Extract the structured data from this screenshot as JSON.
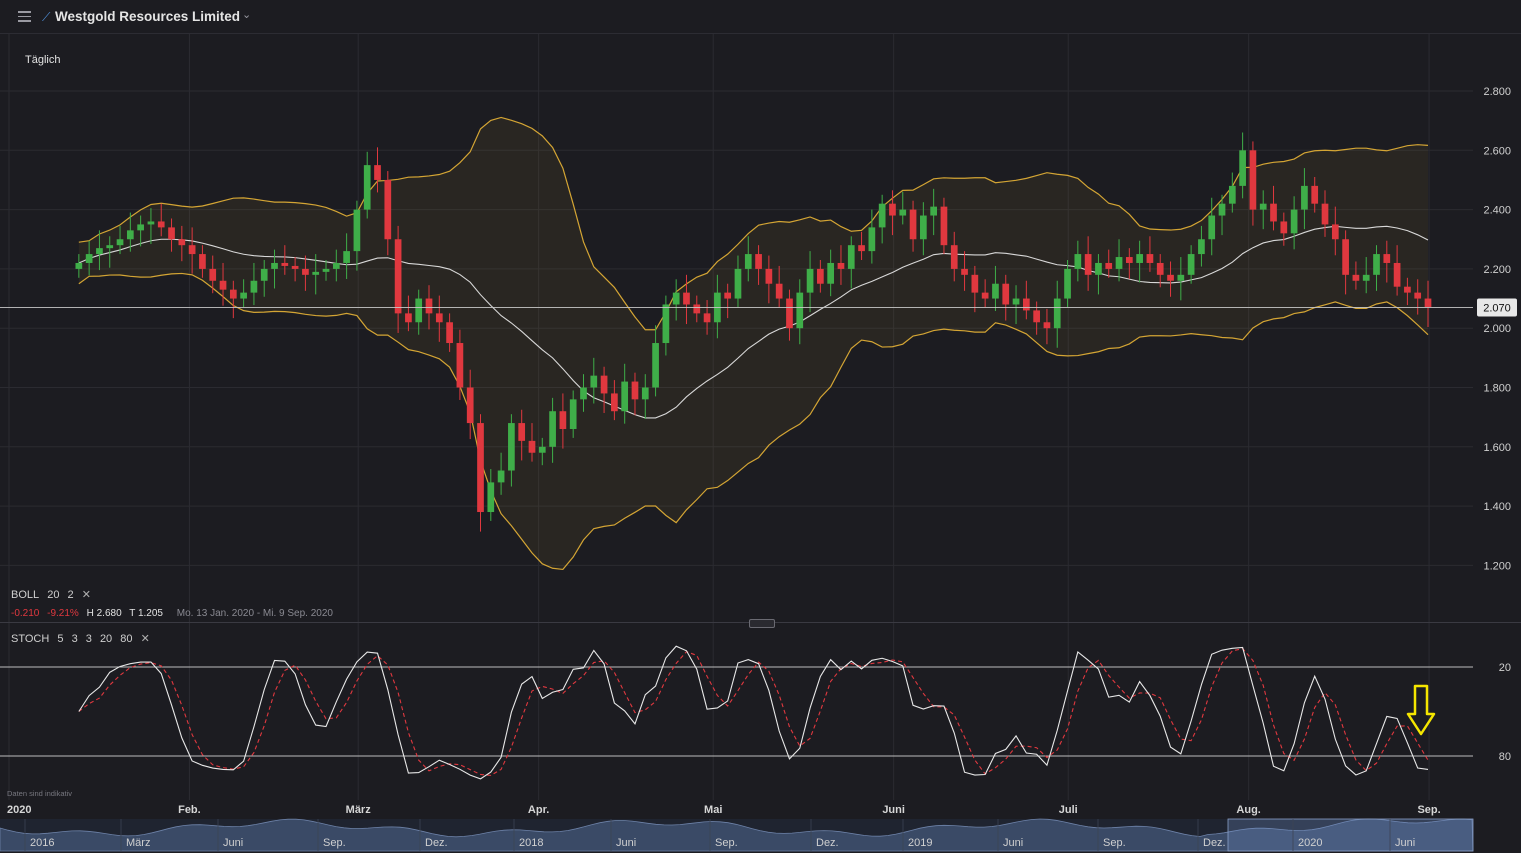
{
  "header": {
    "title": "Westgold Resources Limited"
  },
  "chart_header": {
    "period": "Täglich"
  },
  "boll": {
    "name": "BOLL",
    "p1": "20",
    "p2": "2"
  },
  "stats": {
    "change": "-0.210",
    "change_pct": "-9.21%",
    "high": "H 2.680",
    "low": "T 1.205",
    "range": "Mo. 13 Jan. 2020 - Mi. 9 Sep. 2020"
  },
  "stoch": {
    "name": "STOCH",
    "p1": "5",
    "p2": "3",
    "p3": "3",
    "p4": "20",
    "p5": "80"
  },
  "disclaimer": "Daten sind indikativ",
  "current_price": "2.070",
  "colors": {
    "up": "#3fae49",
    "down": "#e0383f",
    "band": "#d4a534",
    "ma": "#d8d8d8",
    "stoch_d": "#e0383f",
    "stoch_k": "#e8e8e8",
    "arrow": "#f5e600"
  },
  "chart_data": [
    {
      "type": "candlestick",
      "overlay": "Bollinger Bands (20, 2)",
      "ylim": [
        1.1,
        2.93
      ],
      "yticks": [
        "2.800",
        "2.600",
        "2.400",
        "2.200",
        "2.000",
        "1.800",
        "1.600",
        "1.400",
        "1.200"
      ],
      "ytick_values": [
        2.8,
        2.6,
        2.4,
        2.2,
        2.0,
        1.8,
        1.6,
        1.4,
        1.2
      ],
      "xtick_labels": [
        "2020",
        "Feb.",
        "März",
        "Apr.",
        "Mai",
        "Juni",
        "Juli",
        "Aug.",
        "Sep."
      ],
      "xtick_dates": [
        "2020-01-01",
        "2020-02-01",
        "2020-03-01",
        "2020-04-01",
        "2020-05-01",
        "2020-06-01",
        "2020-07-01",
        "2020-08-01",
        "2020-09-01"
      ],
      "date_range": [
        "2020-01-13",
        "2020-09-09"
      ],
      "last": 2.07,
      "close_series": [
        2.22,
        2.25,
        2.27,
        2.28,
        2.3,
        2.33,
        2.35,
        2.36,
        2.34,
        2.3,
        2.28,
        2.25,
        2.2,
        2.16,
        2.13,
        2.1,
        2.12,
        2.16,
        2.2,
        2.22,
        2.21,
        2.2,
        2.18,
        2.19,
        2.2,
        2.22,
        2.26,
        2.4,
        2.55,
        2.5,
        2.3,
        2.05,
        2.02,
        2.1,
        2.05,
        2.02,
        1.95,
        1.8,
        1.68,
        1.38,
        1.48,
        1.52,
        1.68,
        1.62,
        1.58,
        1.6,
        1.72,
        1.66,
        1.76,
        1.8,
        1.84,
        1.78,
        1.72,
        1.82,
        1.76,
        1.8,
        1.95,
        2.08,
        2.12,
        2.08,
        2.05,
        2.02,
        2.12,
        2.1,
        2.2,
        2.25,
        2.2,
        2.15,
        2.1,
        2.0,
        2.12,
        2.2,
        2.15,
        2.22,
        2.2,
        2.28,
        2.26,
        2.34,
        2.42,
        2.38,
        2.4,
        2.3,
        2.38,
        2.41,
        2.28,
        2.2,
        2.18,
        2.12,
        2.1,
        2.15,
        2.08,
        2.1,
        2.06,
        2.02,
        2.0,
        2.1,
        2.2,
        2.25,
        2.18,
        2.22,
        2.2,
        2.24,
        2.22,
        2.25,
        2.22,
        2.18,
        2.16,
        2.18,
        2.25,
        2.3,
        2.38,
        2.42,
        2.48,
        2.6,
        2.4,
        2.42,
        2.36,
        2.32,
        2.4,
        2.48,
        2.42,
        2.35,
        2.3,
        2.18,
        2.16,
        2.18,
        2.25,
        2.22,
        2.14,
        2.12,
        2.1,
        2.07
      ],
      "bollinger": {
        "period": 20,
        "stddev": 2
      }
    },
    {
      "type": "line",
      "indicator": "Stochastic (5,3,3)",
      "levels": [
        20,
        80
      ],
      "ytick_labels": [
        "80",
        "20"
      ],
      "series": [],
      "note_arrow": true
    },
    {
      "type": "area",
      "role": "navigator",
      "xtick_labels": [
        "2016",
        "März",
        "Juni",
        "Sep.",
        "Dez.",
        "2018",
        "Juni",
        "Sep.",
        "Dez.",
        "2019",
        "Juni",
        "Sep.",
        "Dez.",
        "2020",
        "Juni"
      ]
    }
  ]
}
